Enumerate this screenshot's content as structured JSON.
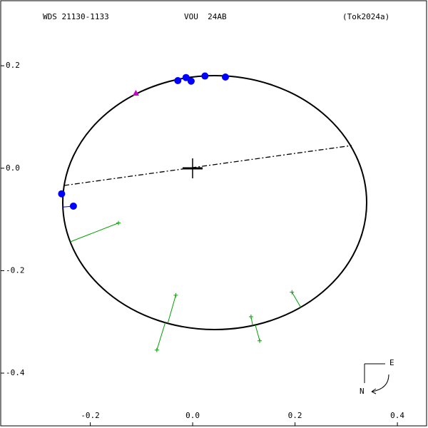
{
  "chart_data": {
    "type": "scatter",
    "header": [
      "WDS 21130-1133",
      "VOU  24AB",
      "(Tok2024a)"
    ],
    "compass": {
      "east": "E",
      "north": "N"
    },
    "xlim": [
      -0.375,
      0.457
    ],
    "ylim": [
      -0.503,
      0.327
    ],
    "xticks": [
      -0.2,
      {
        "value": 0,
        "label": "0.0"
      },
      0.2,
      0.4
    ],
    "yticks": [
      0.2,
      {
        "value": 0,
        "label": "0.0"
      },
      -0.2,
      -0.4
    ],
    "series": [
      {
        "color": "#0000ff",
        "marker": "circle",
        "x": [
          -0.029,
          -0.013,
          -0.003,
          0.024,
          0.064,
          -0.256,
          -0.233
        ],
        "y": [
          0.171,
          0.177,
          0.17,
          0.18,
          0.178,
          -0.05,
          -0.074
        ]
      },
      {
        "color": "#cc00cc",
        "marker": "triangle",
        "x": [
          -0.111
        ],
        "y": [
          0.146
        ]
      },
      {
        "color": "#00a000",
        "marker": "plus",
        "x": [
          -0.145,
          -0.033,
          -0.07,
          0.114,
          0.131,
          0.194
        ],
        "y": [
          -0.107,
          -0.248,
          -0.355,
          -0.29,
          -0.337,
          -0.242
        ]
      }
    ]
  }
}
